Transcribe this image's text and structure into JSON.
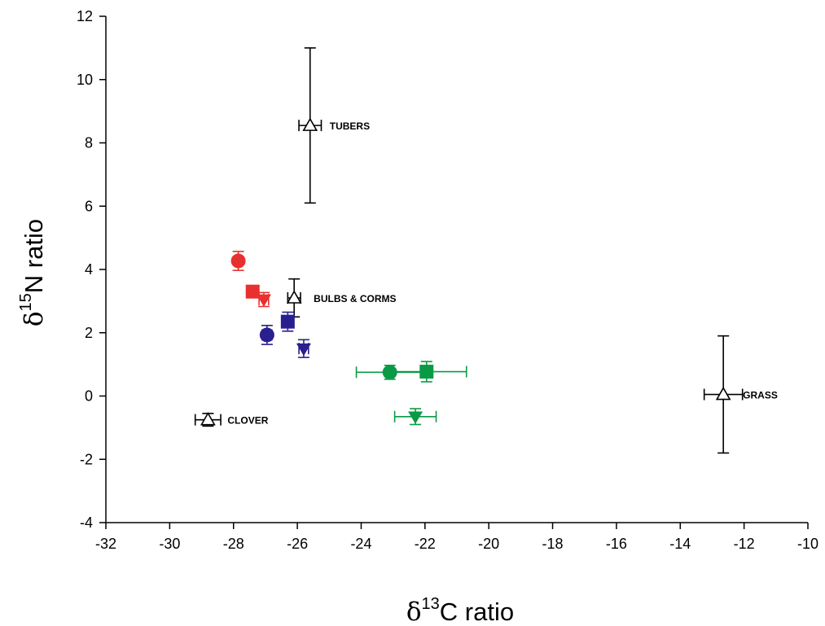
{
  "chart_data": {
    "type": "scatter",
    "xlabel": {
      "prefix": "δ",
      "sup": "13",
      "suffix": "C ratio"
    },
    "ylabel": {
      "prefix": "δ",
      "sup": "15",
      "suffix": "N ratio"
    },
    "xlim": [
      -32,
      -10
    ],
    "ylim": [
      -4,
      12
    ],
    "xticks": [
      -32,
      -30,
      -28,
      -26,
      -24,
      -22,
      -20,
      -18,
      -16,
      -14,
      -12,
      -10
    ],
    "yticks": [
      -4,
      -2,
      0,
      2,
      4,
      6,
      8,
      10,
      12
    ],
    "grid": false,
    "colors": {
      "red": "#e8302f",
      "blue": "#2a1f8f",
      "green": "#0a9a46",
      "black": "#000000"
    },
    "foods": [
      {
        "label": "TUBERS",
        "x": -25.6,
        "y": 8.55,
        "xerr": 0.35,
        "yerr": 2.45
      },
      {
        "label": "BULBS & CORMS",
        "x": -26.1,
        "y": 3.1,
        "xerr": 0.2,
        "yerr": 0.6
      },
      {
        "label": "CLOVER",
        "x": -28.8,
        "y": -0.75,
        "xerr": 0.4,
        "yerr": 0.2
      },
      {
        "label": "GRASS",
        "x": -12.65,
        "y": 0.05,
        "xerr": 0.6,
        "yerr": 1.85
      }
    ],
    "groups": [
      {
        "color": "red",
        "marker": "circle",
        "x": -27.85,
        "y": 4.27,
        "xerr": 0.12,
        "yerr": 0.3
      },
      {
        "color": "red",
        "marker": "square",
        "x": -27.4,
        "y": 3.3,
        "xerr": 0.1,
        "yerr": 0.12
      },
      {
        "color": "red",
        "marker": "triangle-down",
        "x": -27.05,
        "y": 3.05,
        "xerr": 0.15,
        "yerr": 0.22
      },
      {
        "color": "blue",
        "marker": "circle",
        "x": -26.95,
        "y": 1.93,
        "xerr": 0.15,
        "yerr": 0.3
      },
      {
        "color": "blue",
        "marker": "square",
        "x": -26.3,
        "y": 2.35,
        "xerr": 0.12,
        "yerr": 0.3
      },
      {
        "color": "blue",
        "marker": "triangle-down",
        "x": -25.8,
        "y": 1.5,
        "xerr": 0.15,
        "yerr": 0.28
      },
      {
        "color": "green",
        "marker": "circle",
        "x": -23.1,
        "y": 0.75,
        "xerr": 1.05,
        "yerr": 0.22
      },
      {
        "color": "green",
        "marker": "square",
        "x": -21.95,
        "y": 0.77,
        "xerr": 1.25,
        "yerr": 0.32
      },
      {
        "color": "green",
        "marker": "triangle-down",
        "x": -22.3,
        "y": -0.65,
        "xerr": 0.65,
        "yerr": 0.25
      }
    ]
  }
}
